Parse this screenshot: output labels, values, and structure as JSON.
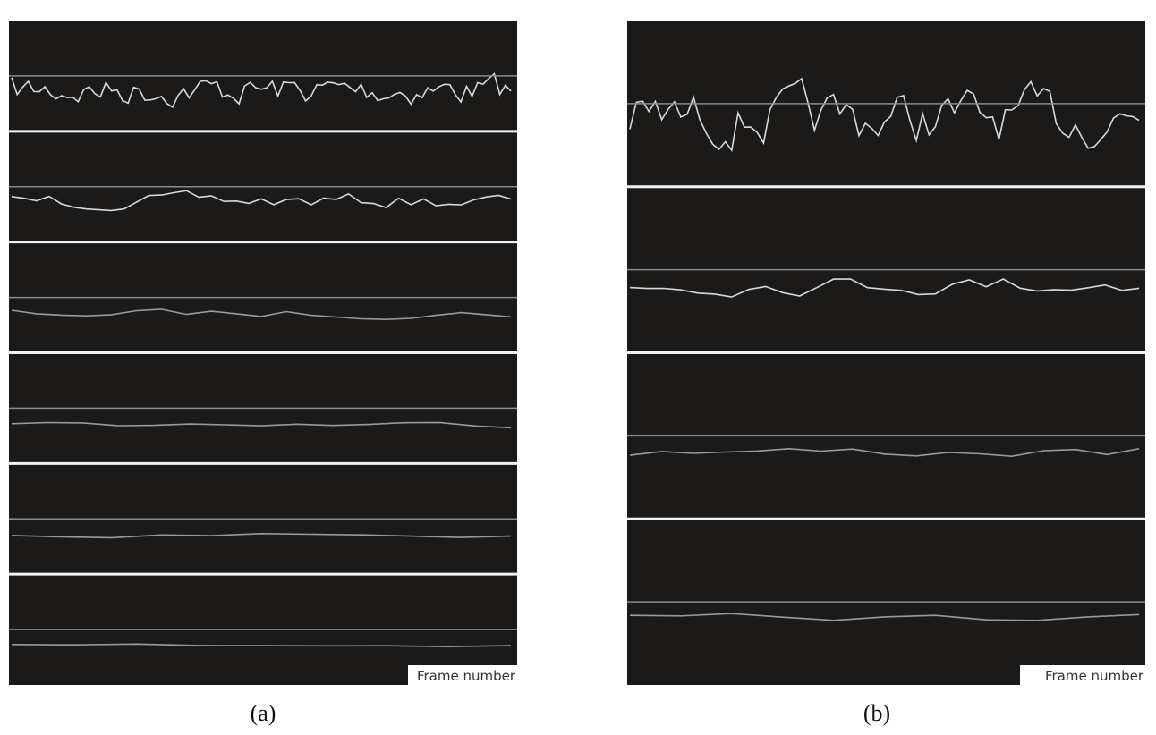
{
  "panels": [
    {
      "caption": "(a)",
      "axis_label": "Frame number"
    },
    {
      "caption": "(b)",
      "axis_label": "Frame number"
    }
  ]
}
